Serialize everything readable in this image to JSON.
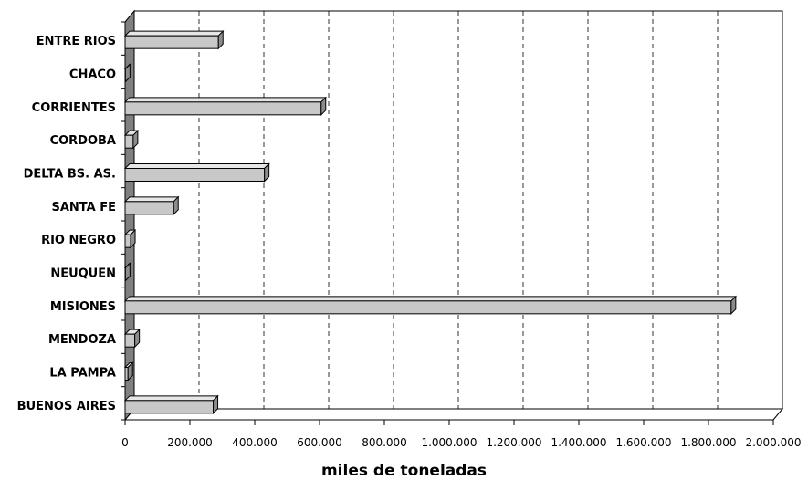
{
  "chart_data": {
    "type": "bar",
    "orientation": "horizontal",
    "style": "3d",
    "categories": [
      "ENTRE RIOS",
      "CHACO",
      "CORRIENTES",
      "CORDOBA",
      "DELTA BS. AS.",
      "SANTA FE",
      "RIO NEGRO",
      "NEUQUEN",
      "MISIONES",
      "MENDOZA",
      "LA PAMPA",
      "BUENOS AIRES"
    ],
    "values": [
      288000,
      1000,
      605000,
      25000,
      430000,
      150000,
      17000,
      1000,
      1870000,
      30000,
      9000,
      272000
    ],
    "xlabel": "miles de toneladas",
    "xlim": [
      0,
      2000000
    ],
    "xticks": [
      0,
      200000,
      400000,
      600000,
      800000,
      1000000,
      1200000,
      1400000,
      1600000,
      1800000,
      2000000
    ],
    "xtick_labels": [
      "0",
      "200.000",
      "400.000",
      "600.000",
      "800.000",
      "1.000.000",
      "1.200.000",
      "1.400.000",
      "1.600.000",
      "1.800.000",
      "2.000.000"
    ],
    "grid": "vertical-dashed",
    "colors": {
      "bar_face": "#c8c8c8",
      "bar_top": "#e6e6e6",
      "bar_side": "#8c8c8c",
      "wall": "#808080",
      "outline": "#000000"
    }
  }
}
